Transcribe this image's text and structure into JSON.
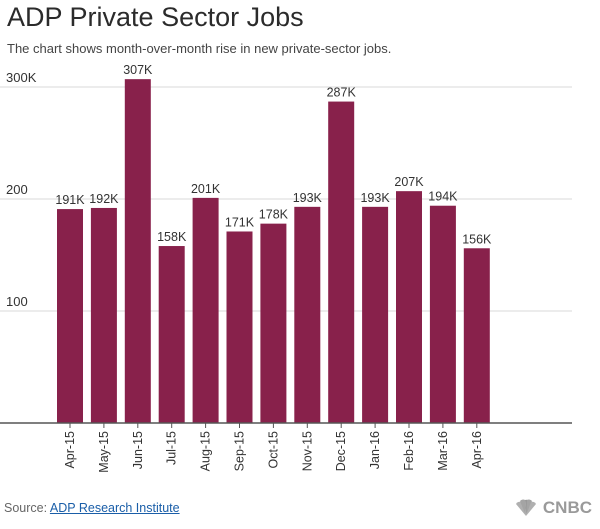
{
  "title": "ADP Private Sector Jobs",
  "subtitle": "The chart shows month-over-month rise in new private-sector jobs.",
  "source_prefix": "Source:",
  "source_link": "ADP Research Institute",
  "brand": "CNBC",
  "brand_icon": "peacock-logo-icon",
  "colors": {
    "bar": "#88214b",
    "grid": "#d9d9d9",
    "axis": "#555555",
    "text": "#333333"
  },
  "chart_data": {
    "type": "bar",
    "title": "ADP Private Sector Jobs",
    "categories": [
      "Apr-15",
      "May-15",
      "Jun-15",
      "Jul-15",
      "Aug-15",
      "Sep-15",
      "Oct-15",
      "Nov-15",
      "Dec-15",
      "Jan-16",
      "Feb-16",
      "Mar-16",
      "Apr-16"
    ],
    "values": [
      191,
      192,
      307,
      158,
      201,
      171,
      178,
      193,
      287,
      193,
      207,
      194,
      156
    ],
    "data_labels": [
      "191K",
      "192K",
      "307K",
      "158K",
      "201K",
      "171K",
      "178K",
      "193K",
      "287K",
      "193K",
      "207K",
      "194K",
      "156K"
    ],
    "y_ticks": [
      100,
      200,
      300
    ],
    "y_tick_labels": [
      "100",
      "200",
      "300K"
    ],
    "ylim": [
      0,
      300
    ],
    "grid": true,
    "xlabel": "",
    "ylabel": ""
  }
}
